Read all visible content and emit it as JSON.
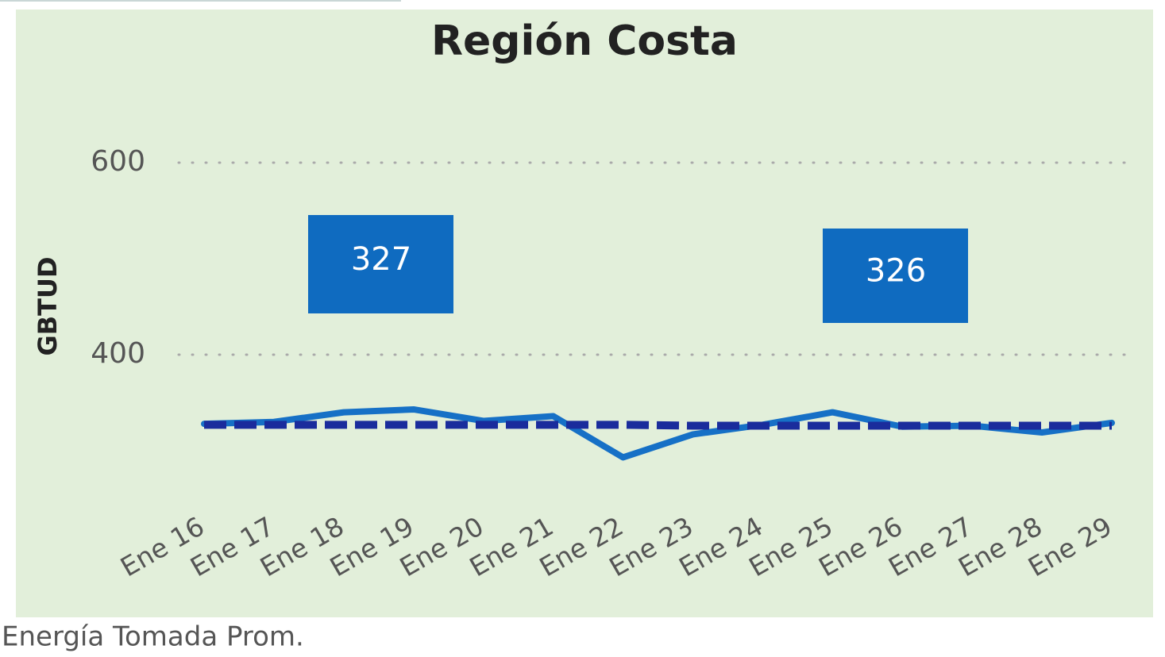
{
  "chart_data": {
    "type": "line",
    "title": "Región Costa",
    "ylabel": "GBTUD",
    "caption": "Energía Tomada Prom.",
    "categories": [
      "Ene 16",
      "Ene 17",
      "Ene 18",
      "Ene 19",
      "Ene 20",
      "Ene 21",
      "Ene 22",
      "Ene 23",
      "Ene 24",
      "Ene 25",
      "Ene 26",
      "Ene 27",
      "Ene 28",
      "Ene 29"
    ],
    "series": [
      {
        "color": "#1670c6",
        "dashed": false,
        "values": [
          328,
          330,
          340,
          343,
          331,
          336,
          293,
          317,
          327,
          340,
          325,
          326,
          319,
          329
        ]
      },
      {
        "color": "#1a2c9c",
        "dashed": true,
        "values": [
          327,
          327,
          327,
          327,
          327,
          327,
          327,
          326,
          326,
          326,
          326,
          326,
          326,
          326
        ]
      }
    ],
    "ylim": [
      250,
      650
    ],
    "yticks": [
      400,
      600
    ],
    "grid": true
  }
}
